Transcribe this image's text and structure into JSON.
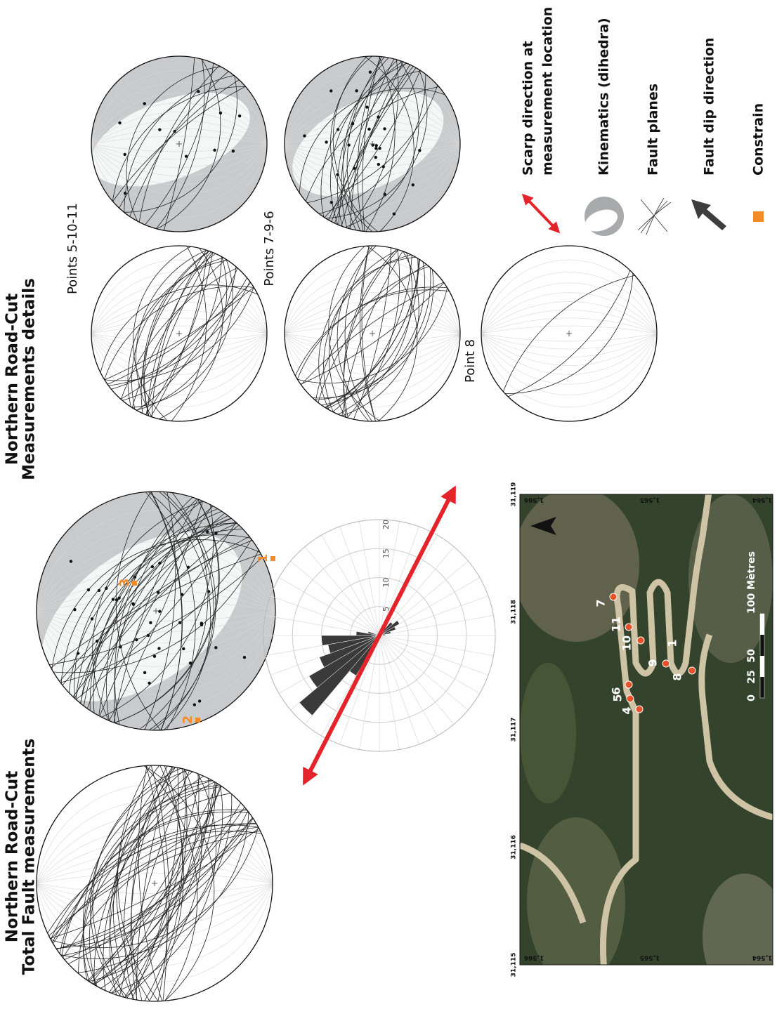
{
  "total": {
    "title": [
      "Northern Road-Cut",
      "Total Fault measurements"
    ],
    "constraints": [
      "1",
      "2",
      "3"
    ]
  },
  "rose": {
    "bins": [
      0,
      10,
      20,
      30,
      40,
      50,
      60,
      70,
      80,
      90,
      100,
      110,
      120,
      130,
      140,
      150,
      160,
      170,
      180,
      190,
      200,
      210,
      220,
      230,
      240,
      250,
      260,
      270,
      280,
      290,
      300,
      310,
      320,
      330,
      340,
      350,
      360
    ],
    "counts": [
      4,
      2,
      0,
      0,
      0,
      0,
      0,
      0,
      0,
      0,
      0,
      0,
      0,
      3,
      4,
      3,
      2,
      1,
      0,
      0,
      0,
      0,
      0,
      0,
      0,
      0,
      0,
      0,
      0,
      3,
      8,
      18,
      14,
      11,
      9,
      10
    ],
    "rlim": [
      0,
      20
    ],
    "rticks": [
      5,
      10,
      15,
      20
    ],
    "scarp_azimuth": 117
  },
  "map": {
    "x_labels": [
      "31,115",
      "31,116",
      "31,117",
      "31,118",
      "31,119"
    ],
    "y_labels": [
      "1,566",
      "1,565",
      "1,564"
    ],
    "points": [
      "1",
      "4",
      "5",
      "6",
      "7",
      "8",
      "9",
      "10",
      "11"
    ],
    "scale": [
      "0",
      "25",
      "50",
      "100 Mètres"
    ]
  },
  "details": {
    "title": [
      "Northern Road-Cut",
      "Measurements details"
    ],
    "groups": [
      "Points 5-10-11",
      "Points 7-9-6",
      "Point 8"
    ]
  },
  "legend": [
    {
      "label": [
        "Scarp direction at",
        "measurement location"
      ]
    },
    {
      "label": [
        "Kinematics (dihedra)"
      ]
    },
    {
      "label": [
        "Fault planes"
      ]
    },
    {
      "label": [
        "Fault dip direction"
      ]
    },
    {
      "label": [
        "Constrain"
      ]
    }
  ]
}
